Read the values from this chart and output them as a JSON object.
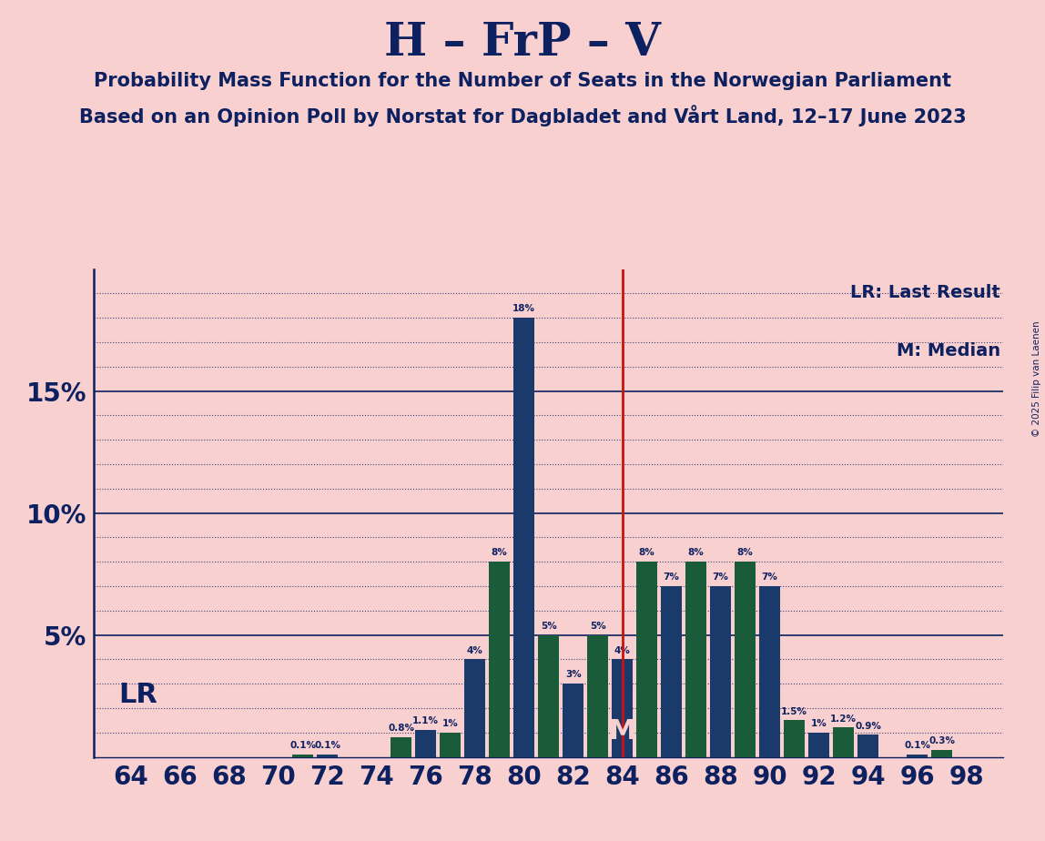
{
  "title": "H – FrP – V",
  "subtitle1": "Probability Mass Function for the Number of Seats in the Norwegian Parliament",
  "subtitle2": "Based on an Opinion Poll by Norstat for Dagbladet and Vårt Land, 12–17 June 2023",
  "copyright": "© 2025 Filip van Laenen",
  "seats": [
    64,
    65,
    66,
    67,
    68,
    69,
    70,
    71,
    72,
    73,
    74,
    75,
    76,
    77,
    78,
    79,
    80,
    81,
    82,
    83,
    84,
    85,
    86,
    87,
    88,
    89,
    90,
    91,
    92,
    93,
    94,
    95,
    96,
    97,
    98
  ],
  "probabilities": [
    0.0,
    0.0,
    0.0,
    0.0,
    0.0,
    0.0,
    0.0,
    0.1,
    0.1,
    0.0,
    0.0,
    0.8,
    1.1,
    1.0,
    4.0,
    8.0,
    18.0,
    5.0,
    3.0,
    5.0,
    4.0,
    8.0,
    7.0,
    8.0,
    7.0,
    8.0,
    7.0,
    1.5,
    1.0,
    1.2,
    0.9,
    0.0,
    0.1,
    0.3,
    0.0
  ],
  "bar_colors": [
    "#1a3a6b",
    "#1a5c3a",
    "#1a3a6b",
    "#1a5c3a",
    "#1a3a6b",
    "#1a5c3a",
    "#1a3a6b",
    "#1a5c3a",
    "#1a3a6b",
    "#1a5c3a",
    "#1a3a6b",
    "#1a5c3a",
    "#1a3a6b",
    "#1a5c3a",
    "#1a3a6b",
    "#1a5c3a",
    "#1a3a6b",
    "#1a5c3a",
    "#1a3a6b",
    "#1a5c3a",
    "#1a3a6b",
    "#1a5c3a",
    "#1a3a6b",
    "#1a5c3a",
    "#1a3a6b",
    "#1a5c3a",
    "#1a3a6b",
    "#1a5c3a",
    "#1a3a6b",
    "#1a5c3a",
    "#1a3a6b",
    "#1a5c3a",
    "#1a3a6b",
    "#1a5c3a",
    "#1a3a6b"
  ],
  "median": 84,
  "background_color": "#f9d0d0",
  "text_color": "#0d2060",
  "ylim": [
    0,
    20
  ],
  "xlabel_seats": [
    64,
    66,
    68,
    70,
    72,
    74,
    76,
    78,
    80,
    82,
    84,
    86,
    88,
    90,
    92,
    94,
    96,
    98
  ],
  "lr_label": "LR",
  "median_label": "M",
  "legend_lr": "LR: Last Result",
  "legend_m": "M: Median",
  "title_fontsize": 36,
  "subtitle_fontsize": 15,
  "ytick_labels": [
    "",
    "5%",
    "10%",
    "15%"
  ],
  "ytick_vals": [
    0,
    5,
    10,
    15
  ]
}
